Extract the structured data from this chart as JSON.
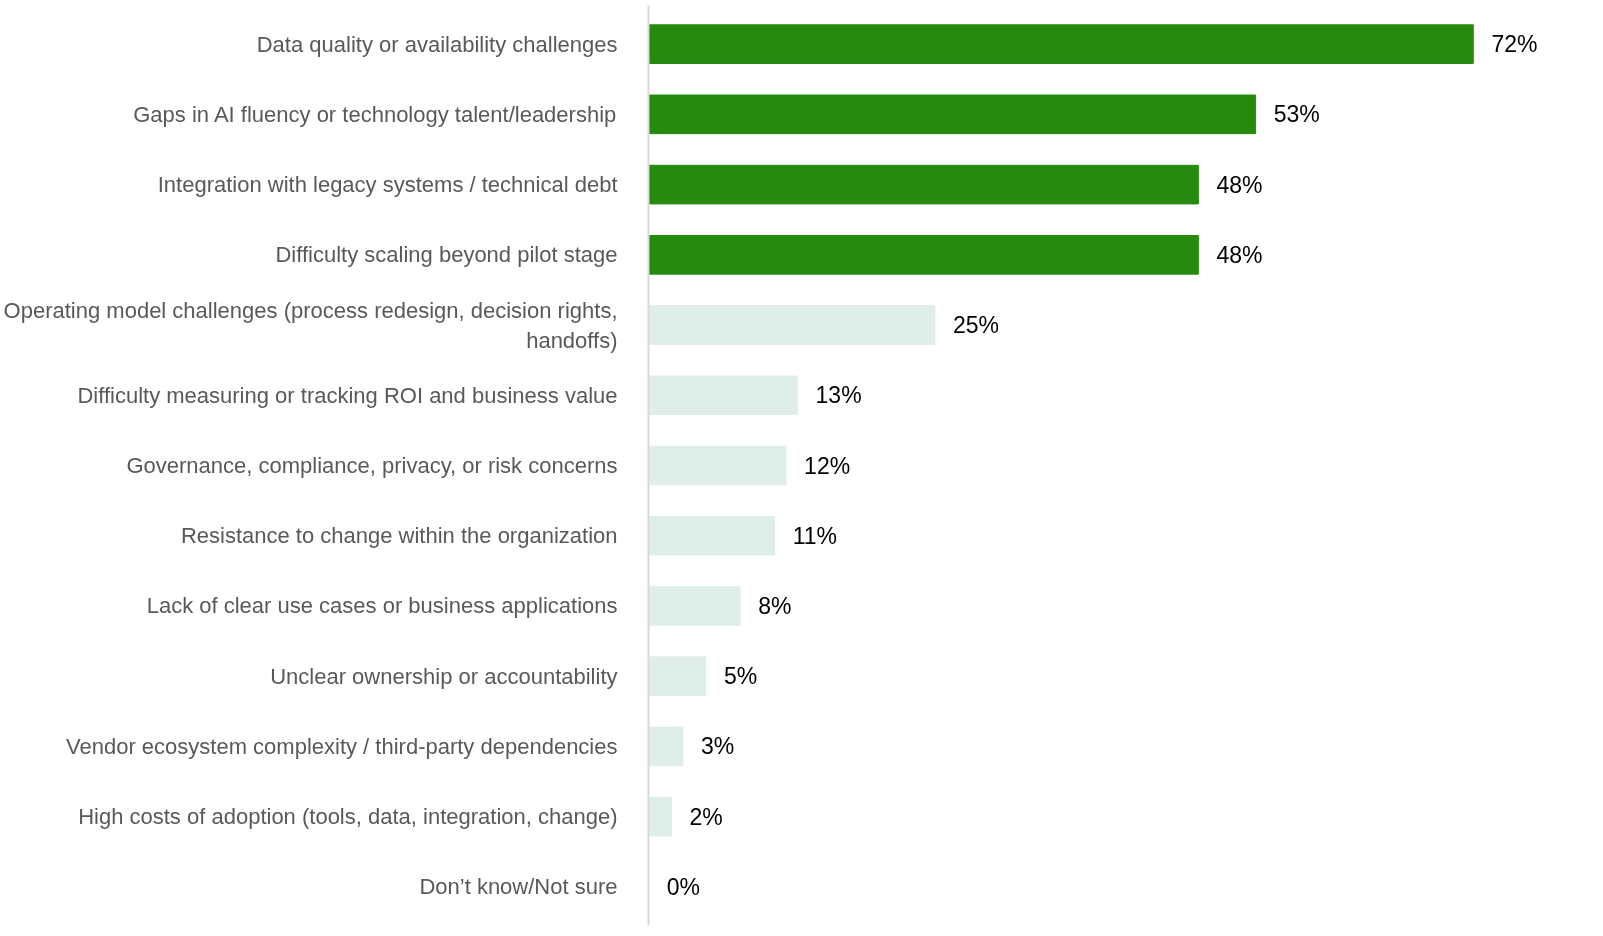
{
  "chart_data": {
    "type": "bar",
    "orientation": "horizontal",
    "categories": [
      "Data quality or availability challenges",
      "Gaps in AI fluency or technology talent/leadership",
      "Integration with legacy systems / technical debt",
      "Difficulty scaling beyond pilot stage",
      "Operating model challenges (process redesign, decision rights, handoffs)",
      "Difficulty measuring or tracking ROI and business value",
      "Governance, compliance, privacy, or risk concerns",
      "Resistance to change within the organization",
      "Lack of clear use cases or business applications",
      "Unclear ownership or accountability",
      "Vendor ecosystem complexity / third-party dependencies",
      "High costs of adoption (tools, data, integration, change)",
      "Don’t know/Not sure"
    ],
    "values": [
      72,
      53,
      48,
      48,
      25,
      13,
      12,
      11,
      8,
      5,
      3,
      2,
      0
    ],
    "colors": [
      "#268a0e",
      "#268a0e",
      "#268a0e",
      "#268a0e",
      "#dfeee8",
      "#dfeee8",
      "#dfeee8",
      "#dfeee8",
      "#dfeee8",
      "#dfeee8",
      "#dfeee8",
      "#dfeee8",
      "#dfeee8"
    ],
    "value_labels": [
      "72%",
      "53%",
      "48%",
      "48%",
      "25%",
      "13%",
      "12%",
      "11%",
      "8%",
      "5%",
      "3%",
      "2%",
      "0%"
    ],
    "grid": false
  }
}
